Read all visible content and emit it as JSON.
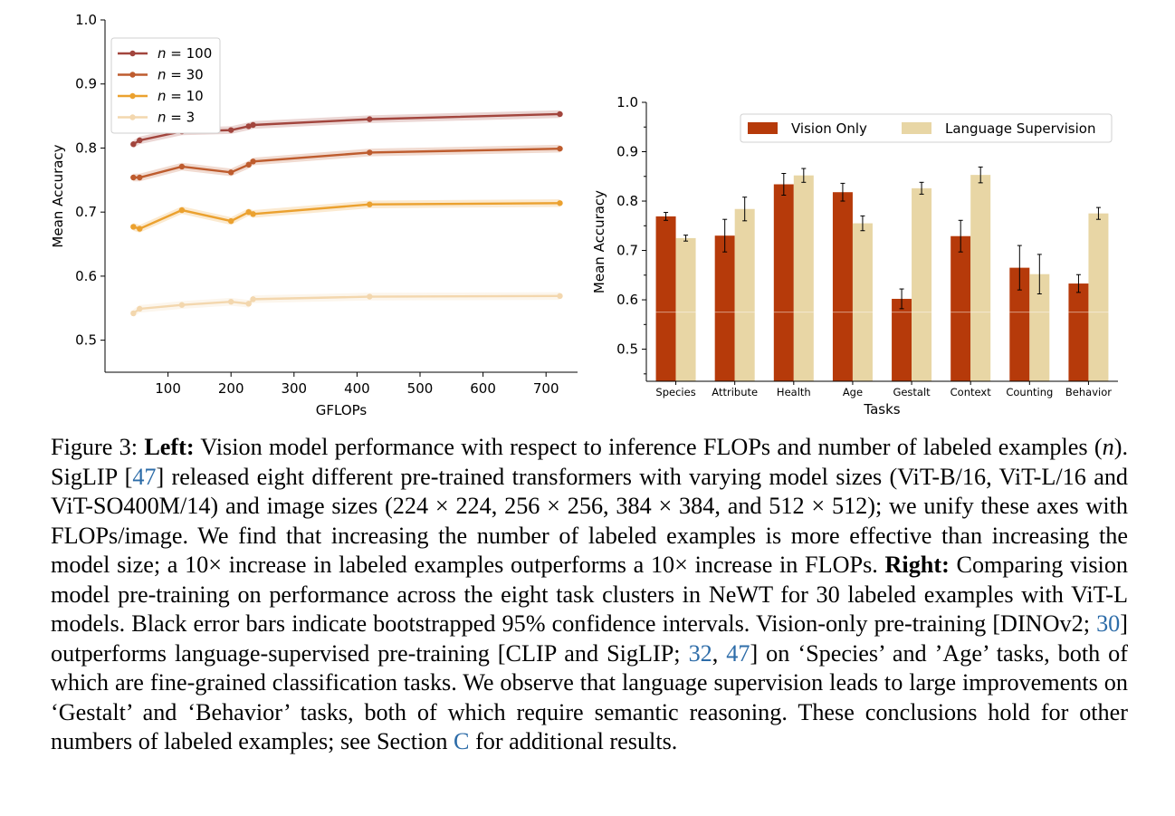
{
  "chart_data": [
    {
      "type": "line",
      "xlabel": "GFLOPs",
      "ylabel": "Mean Accuracy",
      "xlim": [
        0,
        750
      ],
      "ylim": [
        0.45,
        1.0
      ],
      "xticks": [
        100,
        200,
        300,
        400,
        500,
        600,
        700
      ],
      "yticks": [
        0.5,
        0.6,
        0.7,
        0.8,
        0.9,
        1.0
      ],
      "legend_position": "top-left",
      "series": [
        {
          "name": "n = 100",
          "color": "#a2453d",
          "x": [
            45,
            55,
            122,
            200,
            228,
            235,
            420,
            722
          ],
          "y": [
            0.806,
            0.812,
            0.826,
            0.828,
            0.834,
            0.836,
            0.845,
            0.853
          ]
        },
        {
          "name": "n = 30",
          "color": "#be5c2e",
          "x": [
            45,
            55,
            122,
            200,
            228,
            235,
            420,
            722
          ],
          "y": [
            0.754,
            0.754,
            0.771,
            0.762,
            0.774,
            0.779,
            0.793,
            0.799
          ]
        },
        {
          "name": "n = 10",
          "color": "#eba12f",
          "x": [
            45,
            55,
            122,
            200,
            228,
            235,
            420,
            722
          ],
          "y": [
            0.677,
            0.674,
            0.703,
            0.686,
            0.7,
            0.697,
            0.712,
            0.714
          ]
        },
        {
          "name": "n = 3",
          "color": "#f3d7ae",
          "x": [
            45,
            55,
            122,
            200,
            228,
            235,
            420,
            722
          ],
          "y": [
            0.542,
            0.549,
            0.555,
            0.56,
            0.557,
            0.564,
            0.568,
            0.569
          ]
        }
      ]
    },
    {
      "type": "bar",
      "xlabel": "Tasks",
      "ylabel": "Mean Accuracy",
      "ylim": [
        0.435,
        1.0
      ],
      "yticks": [
        0.5,
        0.6,
        0.7,
        0.8,
        0.9,
        1.0
      ],
      "legend_position": "top",
      "categories": [
        "Species",
        "Attribute",
        "Health",
        "Age",
        "Gestalt",
        "Context",
        "Counting",
        "Behavior"
      ],
      "series": [
        {
          "name": "Vision Only",
          "color": "#b63a0a",
          "values": [
            0.769,
            0.73,
            0.834,
            0.818,
            0.602,
            0.729,
            0.665,
            0.633
          ],
          "err": [
            0.008,
            0.033,
            0.022,
            0.018,
            0.02,
            0.032,
            0.045,
            0.018
          ]
        },
        {
          "name": "Language Supervision",
          "color": "#e8d6a5",
          "values": [
            0.725,
            0.784,
            0.852,
            0.755,
            0.826,
            0.853,
            0.652,
            0.775
          ],
          "err": [
            0.006,
            0.024,
            0.014,
            0.015,
            0.012,
            0.016,
            0.04,
            0.012
          ]
        }
      ]
    }
  ],
  "caption": {
    "fig_label": "Figure 3:",
    "left_label": "Left:",
    "t1": "Vision model performance with respect to inference FLOPs and number of labeled examples (",
    "n": "n",
    "t2": "). SigLIP [",
    "ref47a": "47",
    "t3": "] released eight different pre-trained transformers with varying model sizes (ViT-B/16, ViT-L/16 and ViT-SO400M/14) and image sizes (224 × 224, 256 × 256, 384 × 384, and 512 × 512); we unify these axes with FLOPs/image. We find that increasing the number of labeled examples is more effective than increasing the model size; a 10× increase in labeled examples outperforms a 10× increase in FLOPs.",
    "right_label": "Right:",
    "t4": "Comparing vision model pre-training on performance across the eight task clusters in NeWT for 30 labeled examples with ViT-L models. Black error bars indicate bootstrapped 95% confidence intervals. Vision-only pre-training [DINOv2; ",
    "ref30": "30",
    "t5": "] outperforms language-supervised pre-training [CLIP and SigLIP; ",
    "ref32": "32",
    "t6": ", ",
    "ref47b": "47",
    "t7": "] on ‘Species’ and ’Age’ tasks, both of which are fine-grained classification tasks. We observe that language supervision leads to large improvements on ‘Gestalt’ and ‘Behavior’ tasks, both of which require semantic reasoning. These conclusions hold for other numbers of labeled examples; see Section ",
    "refC": "C",
    "t8": " for additional results."
  }
}
